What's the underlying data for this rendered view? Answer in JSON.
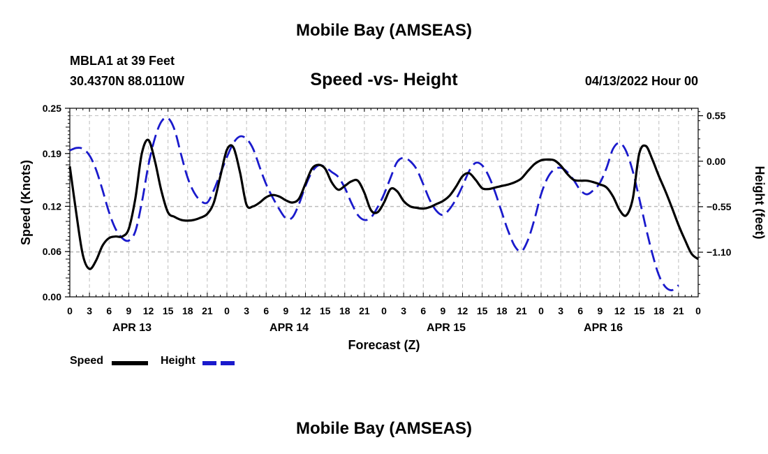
{
  "page": {
    "main_title": "Mobile Bay (AMSEAS)",
    "station_name": "MBLA1 at 39 Feet",
    "station_coords": "30.4370N  88.0110W",
    "forecast_time": "04/13/2022 Hour 00",
    "footer_title": "Mobile Bay (AMSEAS)"
  },
  "legend": [
    {
      "label": "Speed",
      "color": "#000000",
      "style": "solid"
    },
    {
      "label": "Height",
      "color": "#1a1acc",
      "style": "dashed"
    }
  ],
  "chart_data": {
    "type": "line",
    "title": "Speed -vs- Height",
    "xlabel": "Forecast (Z)",
    "ylabel_left": "Speed (Knots)",
    "ylabel_right": "Height (feet)",
    "x_range_hours": [
      0,
      96
    ],
    "x_tick_labels": [
      "0",
      "3",
      "6",
      "9",
      "12",
      "15",
      "18",
      "21",
      "0",
      "3",
      "6",
      "9",
      "12",
      "15",
      "18",
      "21",
      "0",
      "3",
      "6",
      "9",
      "12",
      "15",
      "18",
      "21",
      "0",
      "3",
      "6",
      "9",
      "12",
      "15",
      "18",
      "21",
      "0"
    ],
    "date_labels": [
      {
        "label": "APR 13",
        "hour": 9.5
      },
      {
        "label": "APR 14",
        "hour": 33.5
      },
      {
        "label": "APR 15",
        "hour": 57.5
      },
      {
        "label": "APR 16",
        "hour": 81.5
      }
    ],
    "y_left": {
      "range": [
        0,
        0.25
      ],
      "ticks": [
        0.0,
        0.06,
        0.12,
        0.19,
        0.25
      ],
      "tick_labels": [
        "0.00",
        "0.06",
        "0.12",
        "0.19",
        "0.25"
      ]
    },
    "y_right": {
      "range": [
        -1.64,
        0.64
      ],
      "ticks": [
        0.55,
        0.0,
        -0.55,
        -1.1
      ],
      "tick_labels": [
        "0.55",
        "0.00",
        "−0.55",
        "−1.10"
      ]
    },
    "grid": true,
    "series": [
      {
        "name": "Speed",
        "axis": "left",
        "color": "#000000",
        "dash": "solid",
        "points": [
          [
            0,
            0.173
          ],
          [
            1,
            0.11
          ],
          [
            2,
            0.055
          ],
          [
            3,
            0.037
          ],
          [
            4,
            0.048
          ],
          [
            5,
            0.068
          ],
          [
            6,
            0.078
          ],
          [
            7,
            0.08
          ],
          [
            8,
            0.08
          ],
          [
            9,
            0.09
          ],
          [
            10,
            0.13
          ],
          [
            11,
            0.19
          ],
          [
            12,
            0.208
          ],
          [
            13,
            0.18
          ],
          [
            14,
            0.14
          ],
          [
            15,
            0.112
          ],
          [
            16,
            0.106
          ],
          [
            17,
            0.102
          ],
          [
            18,
            0.101
          ],
          [
            19,
            0.102
          ],
          [
            20,
            0.105
          ],
          [
            21,
            0.11
          ],
          [
            22,
            0.125
          ],
          [
            23,
            0.16
          ],
          [
            24,
            0.195
          ],
          [
            25,
            0.198
          ],
          [
            26,
            0.165
          ],
          [
            27,
            0.122
          ],
          [
            28,
            0.12
          ],
          [
            29,
            0.125
          ],
          [
            30,
            0.132
          ],
          [
            31,
            0.135
          ],
          [
            32,
            0.133
          ],
          [
            33,
            0.128
          ],
          [
            34,
            0.125
          ],
          [
            35,
            0.13
          ],
          [
            36,
            0.15
          ],
          [
            37,
            0.17
          ],
          [
            38,
            0.175
          ],
          [
            39,
            0.17
          ],
          [
            40,
            0.152
          ],
          [
            41,
            0.142
          ],
          [
            42,
            0.147
          ],
          [
            43,
            0.153
          ],
          [
            44,
            0.154
          ],
          [
            45,
            0.138
          ],
          [
            46,
            0.115
          ],
          [
            47,
            0.112
          ],
          [
            48,
            0.125
          ],
          [
            49,
            0.143
          ],
          [
            50,
            0.14
          ],
          [
            51,
            0.127
          ],
          [
            52,
            0.12
          ],
          [
            53,
            0.118
          ],
          [
            54,
            0.117
          ],
          [
            55,
            0.119
          ],
          [
            56,
            0.123
          ],
          [
            57,
            0.127
          ],
          [
            58,
            0.134
          ],
          [
            59,
            0.146
          ],
          [
            60,
            0.16
          ],
          [
            61,
            0.164
          ],
          [
            62,
            0.155
          ],
          [
            63,
            0.144
          ],
          [
            64,
            0.143
          ],
          [
            65,
            0.145
          ],
          [
            66,
            0.147
          ],
          [
            67,
            0.149
          ],
          [
            68,
            0.152
          ],
          [
            69,
            0.157
          ],
          [
            70,
            0.167
          ],
          [
            71,
            0.176
          ],
          [
            72,
            0.181
          ],
          [
            73,
            0.182
          ],
          [
            74,
            0.181
          ],
          [
            75,
            0.174
          ],
          [
            76,
            0.163
          ],
          [
            77,
            0.155
          ],
          [
            78,
            0.154
          ],
          [
            79,
            0.154
          ],
          [
            80,
            0.152
          ],
          [
            81,
            0.149
          ],
          [
            82,
            0.145
          ],
          [
            83,
            0.133
          ],
          [
            84,
            0.115
          ],
          [
            85,
            0.108
          ],
          [
            86,
            0.13
          ],
          [
            87,
            0.19
          ],
          [
            88,
            0.2
          ],
          [
            89,
            0.182
          ],
          [
            90,
            0.16
          ],
          [
            91,
            0.14
          ],
          [
            92,
            0.118
          ],
          [
            93,
            0.095
          ],
          [
            94,
            0.075
          ],
          [
            95,
            0.057
          ],
          [
            96,
            0.05
          ]
        ]
      },
      {
        "name": "Height",
        "axis": "right",
        "color": "#1a1acc",
        "dash": "dashed",
        "points": [
          [
            0,
            0.13
          ],
          [
            1,
            0.16
          ],
          [
            2,
            0.15
          ],
          [
            3,
            0.07
          ],
          [
            4,
            -0.1
          ],
          [
            5,
            -0.35
          ],
          [
            6,
            -0.62
          ],
          [
            7,
            -0.82
          ],
          [
            8,
            -0.93
          ],
          [
            9,
            -0.96
          ],
          [
            10,
            -0.85
          ],
          [
            11,
            -0.5
          ],
          [
            12,
            -0.05
          ],
          [
            13,
            0.28
          ],
          [
            14,
            0.48
          ],
          [
            15,
            0.52
          ],
          [
            16,
            0.38
          ],
          [
            17,
            0.08
          ],
          [
            18,
            -0.2
          ],
          [
            19,
            -0.38
          ],
          [
            20,
            -0.48
          ],
          [
            21,
            -0.5
          ],
          [
            22,
            -0.35
          ],
          [
            23,
            -0.15
          ],
          [
            24,
            0.05
          ],
          [
            25,
            0.22
          ],
          [
            26,
            0.3
          ],
          [
            27,
            0.27
          ],
          [
            28,
            0.15
          ],
          [
            29,
            -0.07
          ],
          [
            30,
            -0.28
          ],
          [
            31,
            -0.44
          ],
          [
            32,
            -0.58
          ],
          [
            33,
            -0.69
          ],
          [
            34,
            -0.68
          ],
          [
            35,
            -0.52
          ],
          [
            36,
            -0.3
          ],
          [
            37,
            -0.13
          ],
          [
            38,
            -0.05
          ],
          [
            39,
            -0.07
          ],
          [
            40,
            -0.13
          ],
          [
            41,
            -0.19
          ],
          [
            42,
            -0.32
          ],
          [
            43,
            -0.5
          ],
          [
            44,
            -0.65
          ],
          [
            45,
            -0.71
          ],
          [
            46,
            -0.68
          ],
          [
            47,
            -0.56
          ],
          [
            48,
            -0.4
          ],
          [
            49,
            -0.2
          ],
          [
            50,
            -0.01
          ],
          [
            51,
            0.04
          ],
          [
            52,
            0.0
          ],
          [
            53,
            -0.1
          ],
          [
            54,
            -0.28
          ],
          [
            55,
            -0.47
          ],
          [
            56,
            -0.6
          ],
          [
            57,
            -0.65
          ],
          [
            58,
            -0.58
          ],
          [
            59,
            -0.46
          ],
          [
            60,
            -0.3
          ],
          [
            61,
            -0.12
          ],
          [
            62,
            -0.02
          ],
          [
            63,
            -0.05
          ],
          [
            64,
            -0.18
          ],
          [
            65,
            -0.38
          ],
          [
            66,
            -0.62
          ],
          [
            67,
            -0.85
          ],
          [
            68,
            -1.03
          ],
          [
            69,
            -1.09
          ],
          [
            70,
            -0.95
          ],
          [
            71,
            -0.7
          ],
          [
            72,
            -0.4
          ],
          [
            73,
            -0.2
          ],
          [
            74,
            -0.1
          ],
          [
            75,
            -0.08
          ],
          [
            76,
            -0.13
          ],
          [
            77,
            -0.23
          ],
          [
            78,
            -0.35
          ],
          [
            79,
            -0.4
          ],
          [
            80,
            -0.35
          ],
          [
            81,
            -0.26
          ],
          [
            82,
            -0.08
          ],
          [
            83,
            0.15
          ],
          [
            84,
            0.22
          ],
          [
            85,
            0.12
          ],
          [
            86,
            -0.12
          ],
          [
            87,
            -0.45
          ],
          [
            88,
            -0.8
          ],
          [
            89,
            -1.12
          ],
          [
            90,
            -1.38
          ],
          [
            91,
            -1.52
          ],
          [
            92,
            -1.56
          ],
          [
            93,
            -1.5
          ]
        ]
      }
    ]
  }
}
